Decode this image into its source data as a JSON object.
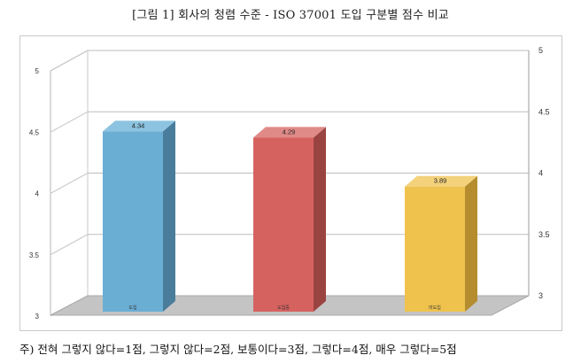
{
  "title": "[그림 1] 회사의 청렴 수준 - ISO 37001 도입 구분별 점수 비교",
  "note": "주) 전혀 그렇지 않다=1점, 그렇지 않다=2점, 보통이다=3점, 그렇다=4점, 매우 그렇다=5점",
  "chart_data": {
    "type": "bar",
    "categories": [
      "도입",
      "도입중",
      "미도입"
    ],
    "values": [
      4.34,
      4.29,
      3.89
    ],
    "value_labels": [
      "4.34",
      "4.29",
      "3.89"
    ],
    "ylim": [
      3,
      5
    ],
    "left_ticks": [
      "5",
      "4.5",
      "4",
      "3.5",
      "3"
    ],
    "right_ticks": [
      "5",
      "4.5",
      "4",
      "3.5",
      "3"
    ],
    "grid": true,
    "legend": "none",
    "colors": [
      "#6aaed4",
      "#d6625f",
      "#eec24d"
    ],
    "side_colors": [
      "#4a7d9b",
      "#9a4442",
      "#b58d2f"
    ],
    "top_colors": [
      "#8cc3e0",
      "#e08a88",
      "#f3d27b"
    ]
  }
}
